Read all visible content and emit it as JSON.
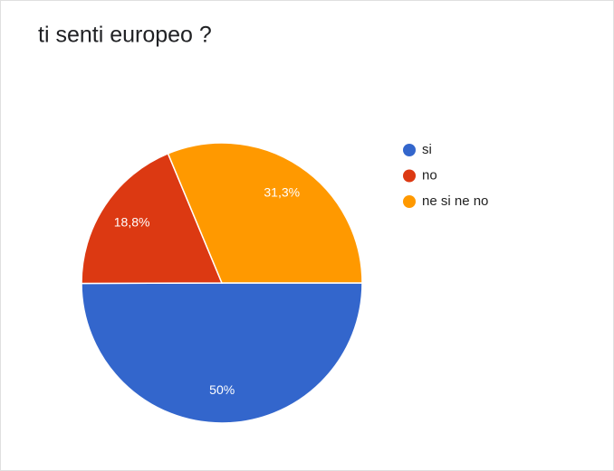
{
  "chart_data": {
    "type": "pie",
    "title": "ti senti europeo ?",
    "categories": [
      "si",
      "no",
      "ne si ne no"
    ],
    "values": [
      50,
      18.8,
      31.3
    ],
    "value_labels": [
      "50%",
      "18,8%",
      "31,3%"
    ],
    "colors": [
      "#3366cc",
      "#dc3912",
      "#ff9900"
    ],
    "legend": "right"
  }
}
